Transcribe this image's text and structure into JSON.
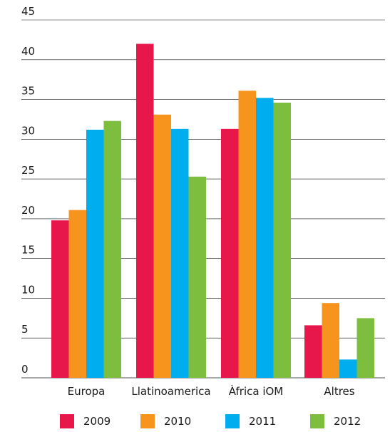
{
  "chart_data": {
    "type": "bar",
    "title": "",
    "xlabel": "",
    "ylabel": "",
    "categories": [
      "Europa",
      "Llatinoamerica",
      "Àfrica iOM",
      "Altres"
    ],
    "series": [
      {
        "name": "2009",
        "color": "#E8174B",
        "values": [
          19.8,
          42.0,
          31.3,
          6.6
        ]
      },
      {
        "name": "2010",
        "color": "#F7941D",
        "values": [
          21.1,
          33.1,
          36.1,
          9.4
        ]
      },
      {
        "name": "2011",
        "color": "#00AEEF",
        "values": [
          31.2,
          31.3,
          35.2,
          2.3
        ]
      },
      {
        "name": "2012",
        "color": "#7DBE3F",
        "values": [
          32.3,
          25.3,
          34.6,
          7.5
        ]
      }
    ],
    "ylim": [
      0,
      45
    ],
    "yticks": [
      0,
      5,
      10,
      15,
      20,
      25,
      30,
      35,
      40,
      45
    ],
    "grid": true,
    "legend_position": "bottom"
  }
}
